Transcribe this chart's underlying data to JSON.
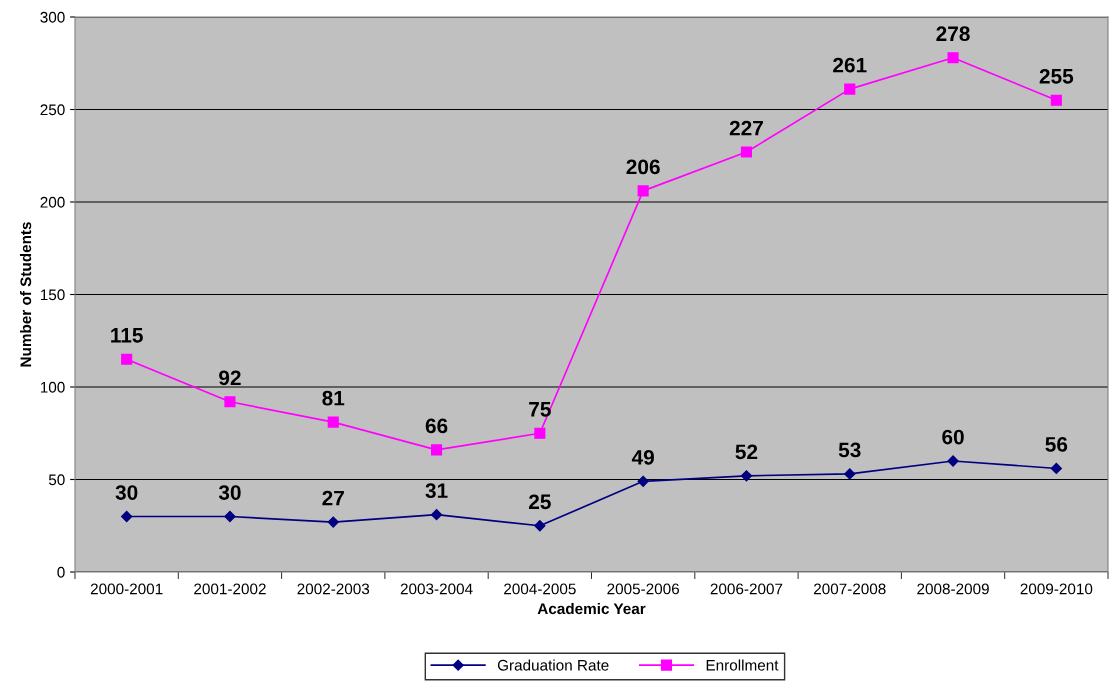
{
  "chart_data": {
    "type": "line",
    "xlabel": "Academic Year",
    "ylabel": "Number of Students",
    "categories": [
      "2000-2001",
      "2001-2002",
      "2002-2003",
      "2003-2004",
      "2004-2005",
      "2005-2006",
      "2006-2007",
      "2007-2008",
      "2008-2009",
      "2009-2010"
    ],
    "series": [
      {
        "name": "Graduation Rate",
        "color": "#000080",
        "marker": "diamond",
        "values": [
          30,
          30,
          27,
          31,
          25,
          49,
          52,
          53,
          60,
          56
        ]
      },
      {
        "name": "Enrollment",
        "color": "#ff00ff",
        "marker": "square",
        "values": [
          115,
          92,
          81,
          66,
          75,
          206,
          227,
          261,
          278,
          255
        ]
      }
    ],
    "ylim": [
      0,
      300
    ],
    "yticks": [
      0,
      50,
      100,
      150,
      200,
      250,
      300
    ],
    "grid": "y",
    "legend": "bottom",
    "data_labels": true,
    "line_style": "solid"
  }
}
